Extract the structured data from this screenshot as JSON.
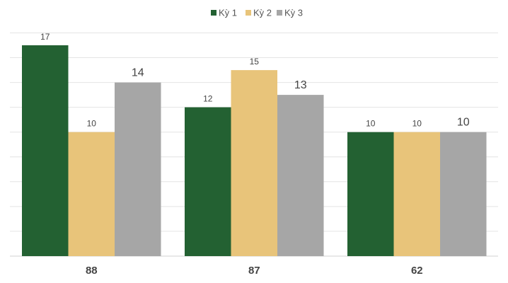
{
  "chart_data": {
    "type": "bar",
    "categories": [
      "88",
      "87",
      "62"
    ],
    "series": [
      {
        "name": "Kỳ 1",
        "values": [
          17,
          12,
          10
        ],
        "color": "#236132"
      },
      {
        "name": "Kỳ 2",
        "values": [
          10,
          15,
          10
        ],
        "color": "#e8c47a"
      },
      {
        "name": "Kỳ 3",
        "values": [
          14,
          13,
          10
        ],
        "color": "#a6a6a6"
      }
    ],
    "title": "",
    "xlabel": "",
    "ylabel": "",
    "ylim": [
      0,
      18
    ],
    "grid": true,
    "legend_position": "top-center",
    "large_label_series": [
      "Kỳ 3"
    ]
  }
}
